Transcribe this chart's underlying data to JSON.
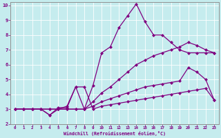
{
  "xlabel": "Windchill (Refroidissement éolien,°C)",
  "background_color": "#c5ecee",
  "grid_color": "#b0d8dc",
  "line_color": "#800080",
  "xlim": [
    -0.5,
    23.5
  ],
  "ylim": [
    2,
    10.2
  ],
  "xticks": [
    0,
    1,
    2,
    3,
    4,
    5,
    6,
    7,
    8,
    9,
    10,
    11,
    12,
    13,
    14,
    15,
    16,
    17,
    18,
    19,
    20,
    21,
    22,
    23
  ],
  "yticks": [
    2,
    3,
    4,
    5,
    6,
    7,
    8,
    9,
    10
  ],
  "line_peak_x": [
    0,
    1,
    2,
    3,
    4,
    5,
    6,
    7,
    8,
    9,
    10,
    11,
    12,
    13,
    14,
    15,
    16,
    17,
    18,
    19,
    20,
    21,
    22,
    23
  ],
  "line_peak_y": [
    3.0,
    3.0,
    3.0,
    3.0,
    2.6,
    3.0,
    3.2,
    4.5,
    3.0,
    4.6,
    6.8,
    7.2,
    8.5,
    9.3,
    10.1,
    8.9,
    8.0,
    8.0,
    7.5,
    7.0,
    6.8,
    6.8,
    6.8,
    6.8
  ],
  "line_mid_x": [
    0,
    1,
    2,
    3,
    4,
    5,
    6,
    7,
    8,
    9,
    10,
    11,
    12,
    13,
    14,
    15,
    16,
    17,
    18,
    19,
    20,
    21,
    22,
    23
  ],
  "line_mid_y": [
    3.0,
    3.0,
    3.0,
    3.0,
    3.0,
    3.0,
    3.0,
    3.0,
    3.0,
    3.5,
    4.1,
    4.5,
    5.0,
    5.5,
    6.0,
    6.3,
    6.6,
    6.8,
    7.0,
    7.2,
    7.5,
    7.3,
    7.0,
    6.8
  ],
  "line_gentle_x": [
    0,
    1,
    2,
    3,
    4,
    5,
    6,
    7,
    8,
    9,
    10,
    11,
    12,
    13,
    14,
    15,
    16,
    17,
    18,
    19,
    20,
    21,
    22,
    23
  ],
  "line_gentle_y": [
    3.0,
    3.0,
    3.0,
    3.0,
    3.0,
    3.0,
    3.0,
    3.0,
    3.0,
    3.2,
    3.5,
    3.7,
    3.9,
    4.1,
    4.3,
    4.5,
    4.6,
    4.7,
    4.8,
    4.9,
    5.8,
    5.5,
    5.0,
    3.6
  ],
  "line_flat_x": [
    0,
    1,
    2,
    3,
    4,
    5,
    6,
    7,
    8,
    9,
    10,
    11,
    12,
    13,
    14,
    15,
    16,
    17,
    18,
    19,
    20,
    21,
    22,
    23
  ],
  "line_flat_y": [
    3.0,
    3.0,
    3.0,
    3.0,
    2.6,
    3.1,
    3.1,
    4.5,
    4.5,
    3.0,
    3.2,
    3.3,
    3.4,
    3.5,
    3.6,
    3.7,
    3.8,
    3.9,
    4.0,
    4.1,
    4.2,
    4.3,
    4.4,
    3.6
  ]
}
